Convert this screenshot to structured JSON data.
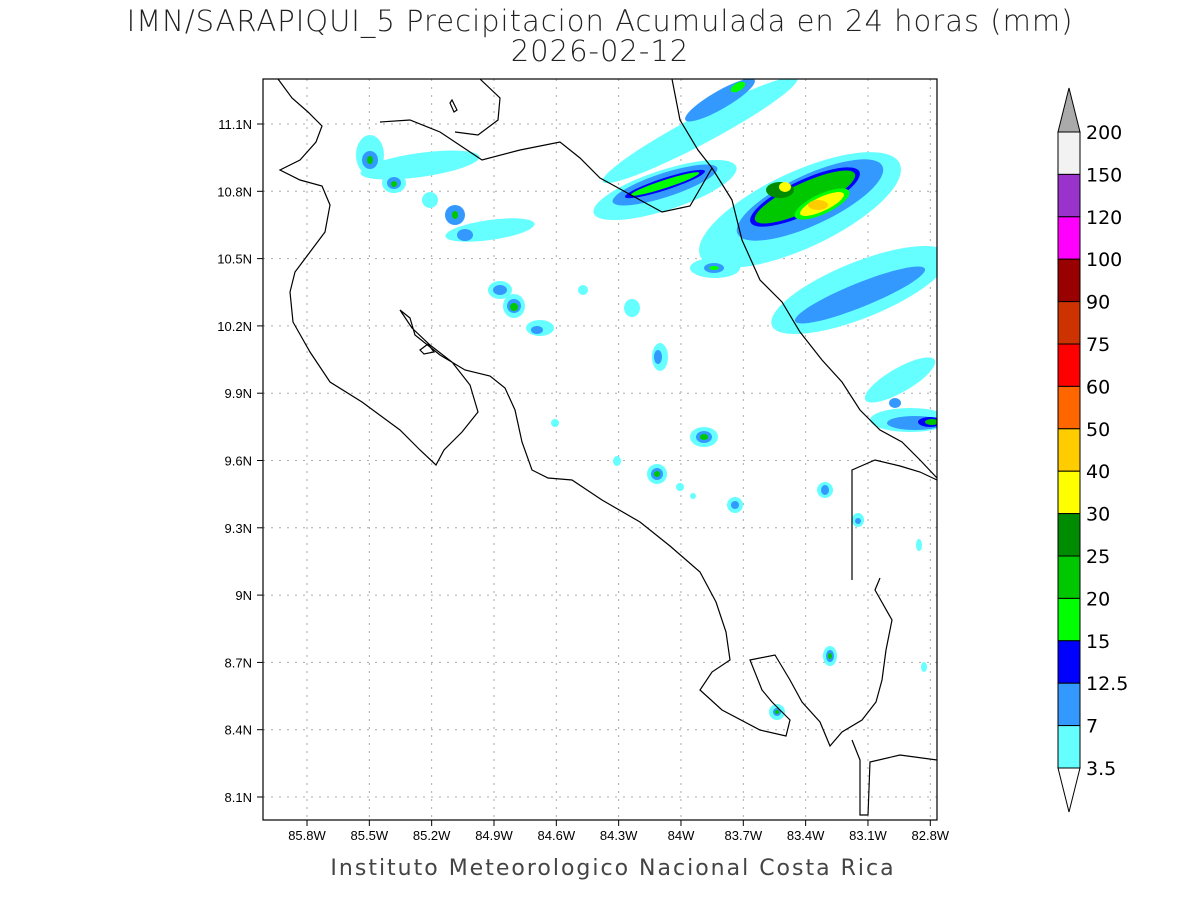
{
  "title": "IMN/SARAPIQUI_5 Precipitacion Acumulada en 24 horas (mm)",
  "date": "2026-02-12",
  "footer": "Instituto Meteorologico Nacional Costa Rica",
  "lon_labels": [
    "85.8W",
    "85.5W",
    "85.2W",
    "84.9W",
    "84.6W",
    "84.3W",
    "84W",
    "83.7W",
    "83.4W",
    "83.1W",
    "82.8W"
  ],
  "lat_labels": [
    "11.1N",
    "10.8N",
    "10.5N",
    "10.2N",
    "9.9N",
    "9.6N",
    "9.3N",
    "9N",
    "8.7N",
    "8.4N",
    "8.1N"
  ],
  "colorbar": {
    "labels": [
      "200",
      "150",
      "120",
      "100",
      "90",
      "75",
      "60",
      "50",
      "40",
      "30",
      "25",
      "20",
      "15",
      "12.5",
      "7",
      "3.5"
    ],
    "colors": [
      "#f2f2f2",
      "#9933cc",
      "#ff00ff",
      "#990000",
      "#cc3300",
      "#ff0000",
      "#ff6600",
      "#ffcc00",
      "#ffff00",
      "#008c00",
      "#00c800",
      "#00ff00",
      "#0000ff",
      "#3399ff",
      "#66ffff"
    ],
    "over_color": "#aaaaaa",
    "under_color": "#ffffff"
  }
}
